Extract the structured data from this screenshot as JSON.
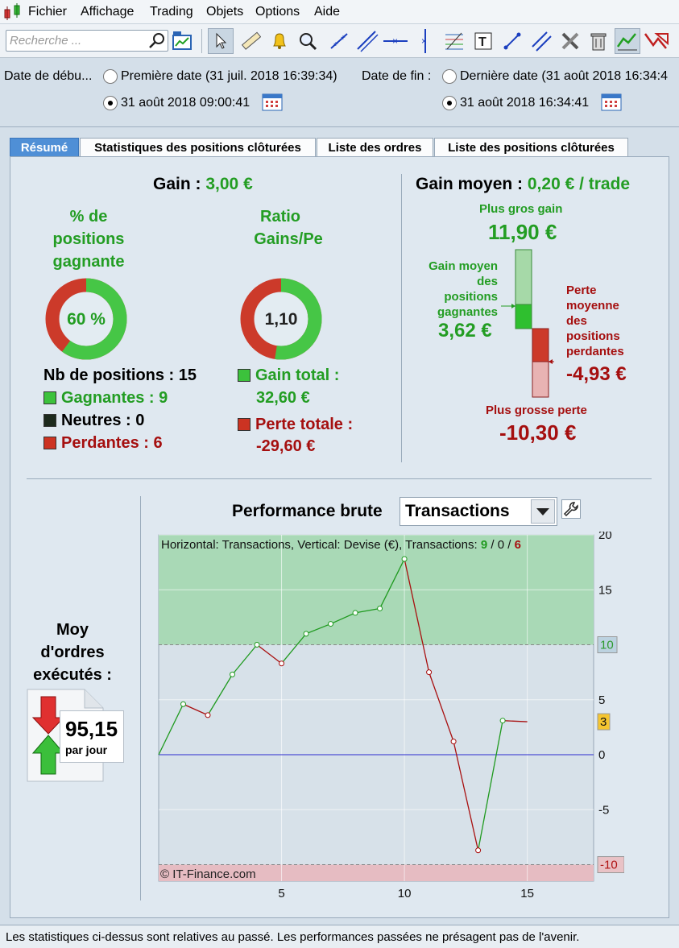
{
  "menu": [
    "Fichier",
    "Affichage",
    "Trading",
    "Objets",
    "Options",
    "Aide"
  ],
  "search": {
    "placeholder": "Recherche ..."
  },
  "dates": {
    "start_label": "Date de débu...",
    "first_date": "Première date (31 juil. 2018 16:39:34)",
    "start_value": "31 août 2018 09:00:41",
    "end_label": "Date de fin :",
    "last_date": "Dernière date (31 août 2018 16:34:4",
    "end_value": "31 août 2018 16:34:41"
  },
  "tabs": [
    "Résumé",
    "Statistiques des positions clôturées",
    "Liste des ordres",
    "Liste des positions clôturées"
  ],
  "summary": {
    "gain_label": "Gain :",
    "gain_value": "3,00 €",
    "pct_label_1": "% de",
    "pct_label_2": "positions",
    "pct_label_3": "gagnante",
    "pct_value": "60 %",
    "pct_fraction": 0.6,
    "ratio_label_1": "Ratio",
    "ratio_label_2": "Gains/Pe",
    "ratio_value": "1,10",
    "ratio_fraction": 0.524,
    "nb_positions": "Nb de positions : 15",
    "winners": "Gagnantes : 9",
    "neutral": "Neutres : 0",
    "losers": "Perdantes : 6",
    "gain_total_label": "Gain total :",
    "gain_total_value": "32,60 €",
    "loss_total_label": "Perte totale :",
    "loss_total_value": "-29,60 €"
  },
  "average": {
    "label": "Gain moyen :",
    "value": "0,20 € / trade",
    "best_label": "Plus gros gain",
    "best_value": "11,90 €",
    "avg_win_lines": [
      "Gain moyen",
      "des",
      "positions",
      "gagnantes"
    ],
    "avg_win_value": "3,62 €",
    "avg_loss_lines": [
      "Perte",
      "moyenne",
      "des",
      "positions",
      "perdantes"
    ],
    "avg_loss_value": "-4,93 €",
    "worst_label": "Plus grosse perte",
    "worst_value": "-10,30 €"
  },
  "orders": {
    "line1": "Moy",
    "line2": "d'ordres",
    "line3": "exécutés :",
    "value": "95,15",
    "unit": "par jour"
  },
  "performance": {
    "title": "Performance brute",
    "select_value": "Transactions"
  },
  "chart_data": {
    "type": "line",
    "header_text": "Horizontal: Transactions, Vertical: Devise (€), Transactions:",
    "count_win": "9",
    "count_neutral": "0",
    "count_loss": "6",
    "slash": "/",
    "x": [
      0,
      1,
      2,
      3,
      4,
      5,
      6,
      7,
      8,
      9,
      10,
      11,
      12,
      13,
      14,
      15
    ],
    "y": [
      0,
      4.6,
      3.6,
      7.3,
      10.0,
      8.3,
      11.0,
      11.9,
      12.9,
      13.3,
      17.8,
      7.5,
      1.2,
      -8.7,
      3.1,
      3.0
    ],
    "x_ticks": [
      5,
      10,
      15
    ],
    "y_ticks": [
      20,
      15,
      5,
      0,
      -5
    ],
    "xlim": [
      0,
      17.7
    ],
    "ylim": [
      -11.5,
      20
    ],
    "upper_band": 10,
    "lower_band": -10,
    "upper_band_label": "10",
    "lower_band_label": "-10",
    "last_value_label": "3",
    "last_value": 3,
    "zero_line": 0,
    "copyright": "© IT-Finance.com",
    "colors": {
      "up": "#1f9a1f",
      "down": "#a80f0f",
      "zero": "#2b2bd0",
      "upper_fill": "#a9d9b6",
      "lower_fill": "#e6bcc2",
      "plot_bg": "#d7e1e9"
    }
  },
  "footer": "Les statistiques ci-dessus sont relatives au passé. Les performances passées ne présagent pas de l'avenir."
}
